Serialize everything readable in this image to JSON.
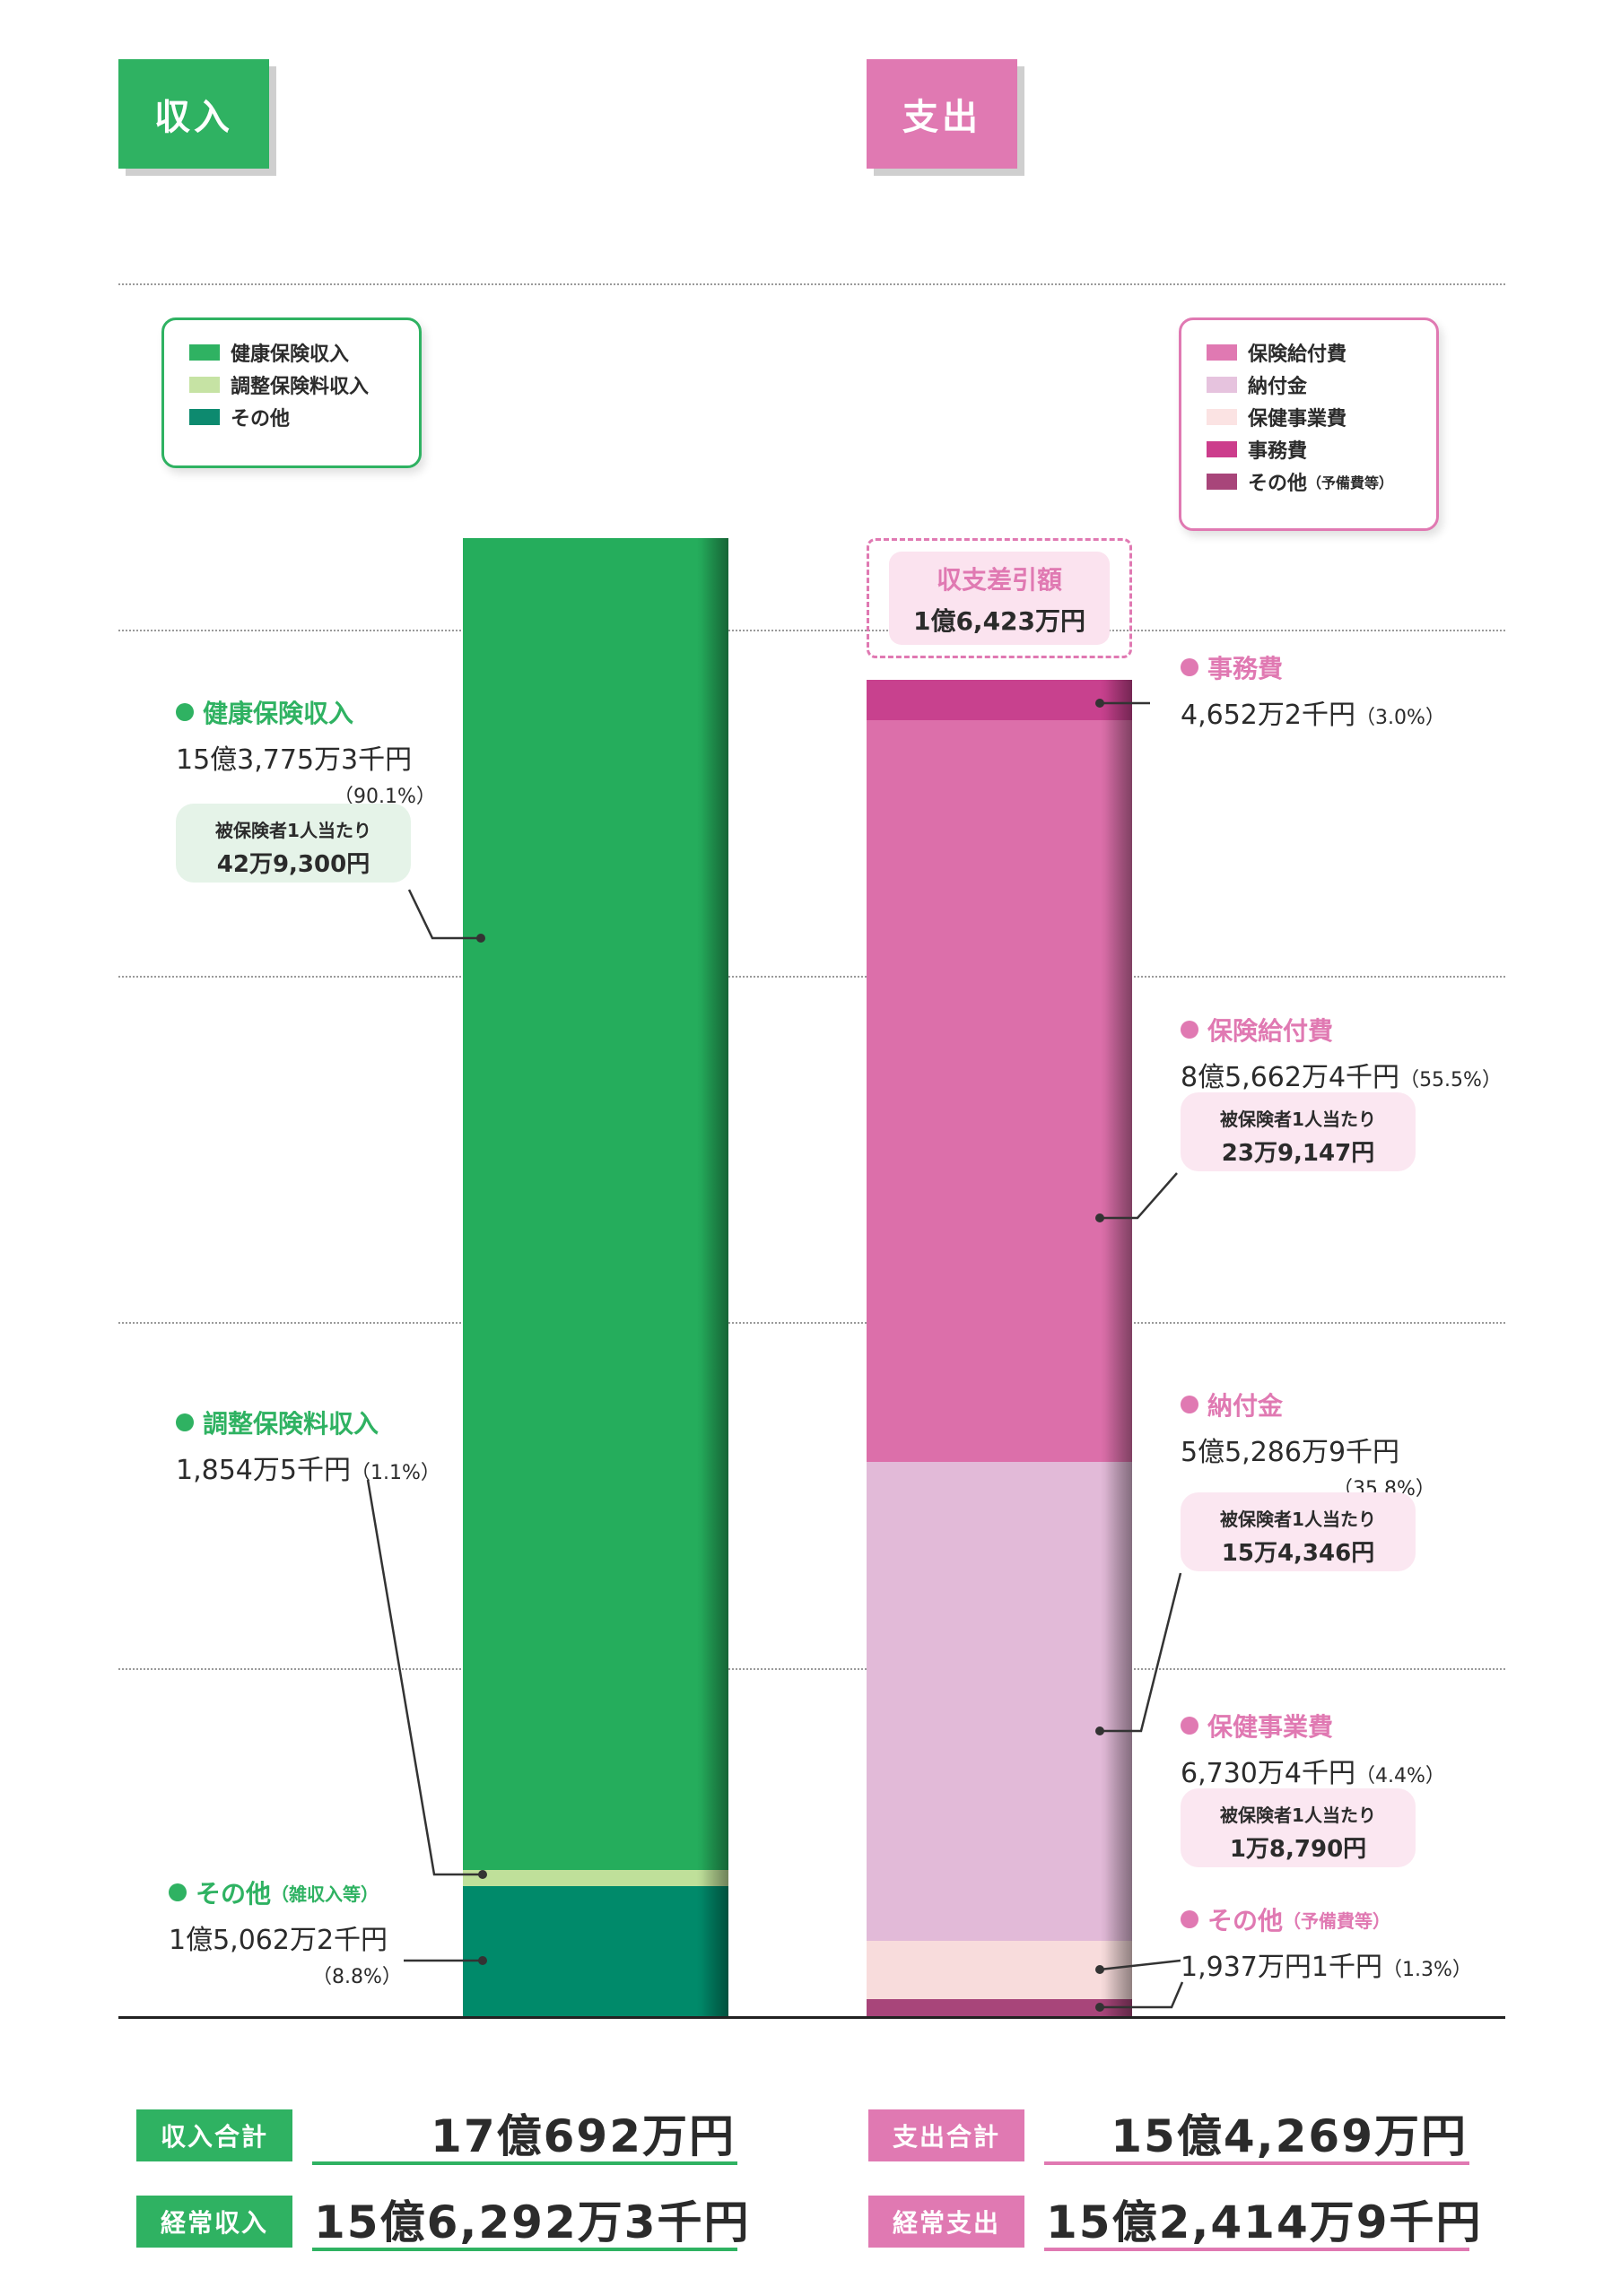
{
  "headers": {
    "income": "収入",
    "expense": "支出"
  },
  "legend": {
    "income": [
      {
        "label": "健康保険収入",
        "color": "#2fb262"
      },
      {
        "label": "調整保険料収入",
        "color": "#c6e3a4"
      },
      {
        "label": "その他",
        "color": "#0d8a6f"
      }
    ],
    "expense": [
      {
        "label": "保険給付費",
        "color": "#e079b2"
      },
      {
        "label": "納付金",
        "color": "#e6c3de"
      },
      {
        "label": "保健事業費",
        "color": "#fbe3e3"
      },
      {
        "label": "事務費",
        "color": "#cc3d8c"
      },
      {
        "label": "その他",
        "sub": "（予備費等）",
        "color": "#a8457a"
      }
    ]
  },
  "labels": {
    "health_income": {
      "title": "健康保険収入",
      "amount": "15億3,775万3千円",
      "pct": "（90.1%）",
      "per_label": "被保険者1人当たり",
      "per_value": "42万9,300円"
    },
    "adjust_income": {
      "title": "調整保険料収入",
      "amount": "1,854万5千円",
      "pct": "（1.1%）"
    },
    "other_income": {
      "title": "その他",
      "sub": "（雑収入等）",
      "amount": "1億5,062万2千円",
      "pct": "（8.8%）"
    },
    "balance": {
      "title": "収支差引額",
      "amount": "1億6,423万円"
    },
    "admin_exp": {
      "title": "事務費",
      "amount": "4,652万2千円",
      "pct": "（3.0%）"
    },
    "benefit_exp": {
      "title": "保険給付費",
      "amount": "8億5,662万4千円",
      "pct": "（55.5%）",
      "per_label": "被保険者1人当たり",
      "per_value": "23万9,147円"
    },
    "payment_exp": {
      "title": "納付金",
      "amount": "5億5,286万9千円",
      "pct": "（35.8%）",
      "per_label": "被保険者1人当たり",
      "per_value": "15万4,346円"
    },
    "health_exp": {
      "title": "保健事業費",
      "amount": "6,730万4千円",
      "pct": "（4.4%）",
      "per_label": "被保険者1人当たり",
      "per_value": "1万8,790円"
    },
    "other_exp": {
      "title": "その他",
      "sub": "（予備費等）",
      "amount": "1,937万円1千円",
      "pct": "（1.3%）"
    }
  },
  "totals": {
    "income_total_label": "収入合計",
    "income_total": "17億692万円",
    "regular_income_label": "経常収入",
    "regular_income": "15億6,292万3千円",
    "expense_total_label": "支出合計",
    "expense_total": "15億4,269万円",
    "regular_expense_label": "経常支出",
    "regular_expense": "15億2,414万9千円"
  },
  "chart_data": {
    "type": "bar",
    "unit": "万円",
    "series": [
      {
        "name": "収入",
        "segments": [
          {
            "category": "その他",
            "value": 15062.2,
            "percent": 8.8,
            "color": "#008a6a"
          },
          {
            "category": "調整保険料収入",
            "value": 1854.5,
            "percent": 1.1,
            "color": "#bfe09a"
          },
          {
            "category": "健康保険収入",
            "value": 153775.3,
            "percent": 90.1,
            "color": "#25ad5c"
          }
        ],
        "total": 170692
      },
      {
        "name": "支出",
        "segments": [
          {
            "category": "その他",
            "value": 1937.1,
            "percent": 1.3,
            "color": "#a8457a"
          },
          {
            "category": "保健事業費",
            "value": 6730.4,
            "percent": 4.4,
            "color": "#f8dcdc"
          },
          {
            "category": "納付金",
            "value": 55286.9,
            "percent": 35.8,
            "color": "#e2bad8"
          },
          {
            "category": "保険給付費",
            "value": 85662.4,
            "percent": 55.5,
            "color": "#dc6faa"
          },
          {
            "category": "事務費",
            "value": 4652.2,
            "percent": 3.0,
            "color": "#c8418e"
          }
        ],
        "total": 154269
      }
    ],
    "balance": 16423
  }
}
